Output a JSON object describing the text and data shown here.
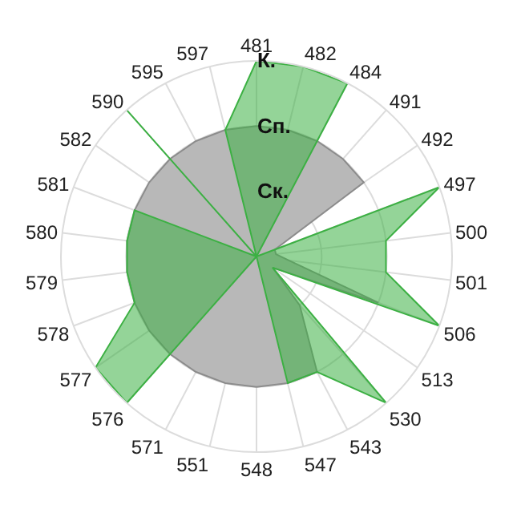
{
  "chart_data": {
    "type": "radar",
    "categories": [
      "481",
      "482",
      "484",
      "491",
      "492",
      "497",
      "500",
      "501",
      "506",
      "513",
      "530",
      "543",
      "547",
      "548",
      "551",
      "571",
      "576",
      "577",
      "578",
      "579",
      "580",
      "581",
      "582",
      "590",
      "595",
      "597"
    ],
    "series": [
      {
        "color": "#b8b8b8",
        "values": [
          2,
          2,
          2,
          2,
          2,
          0.3,
          0.3,
          0.5,
          2,
          0.3,
          1,
          2,
          2,
          2,
          2,
          2,
          2,
          2,
          2,
          2,
          2,
          2,
          2,
          2,
          2,
          2
        ]
      },
      {
        "color": "#3cb043",
        "values": [
          3,
          3,
          3,
          0,
          0,
          3,
          2,
          2,
          3,
          0.3,
          3,
          2,
          2,
          0,
          0,
          0,
          3,
          3,
          2,
          2,
          2,
          2,
          0,
          3,
          0,
          2
        ]
      }
    ],
    "ylim": [
      0,
      3
    ],
    "yticks": [
      {
        "value": 1,
        "label": "Ск."
      },
      {
        "value": 2,
        "label": "Сп."
      },
      {
        "value": 3,
        "label": "К."
      }
    ],
    "grid": true
  }
}
